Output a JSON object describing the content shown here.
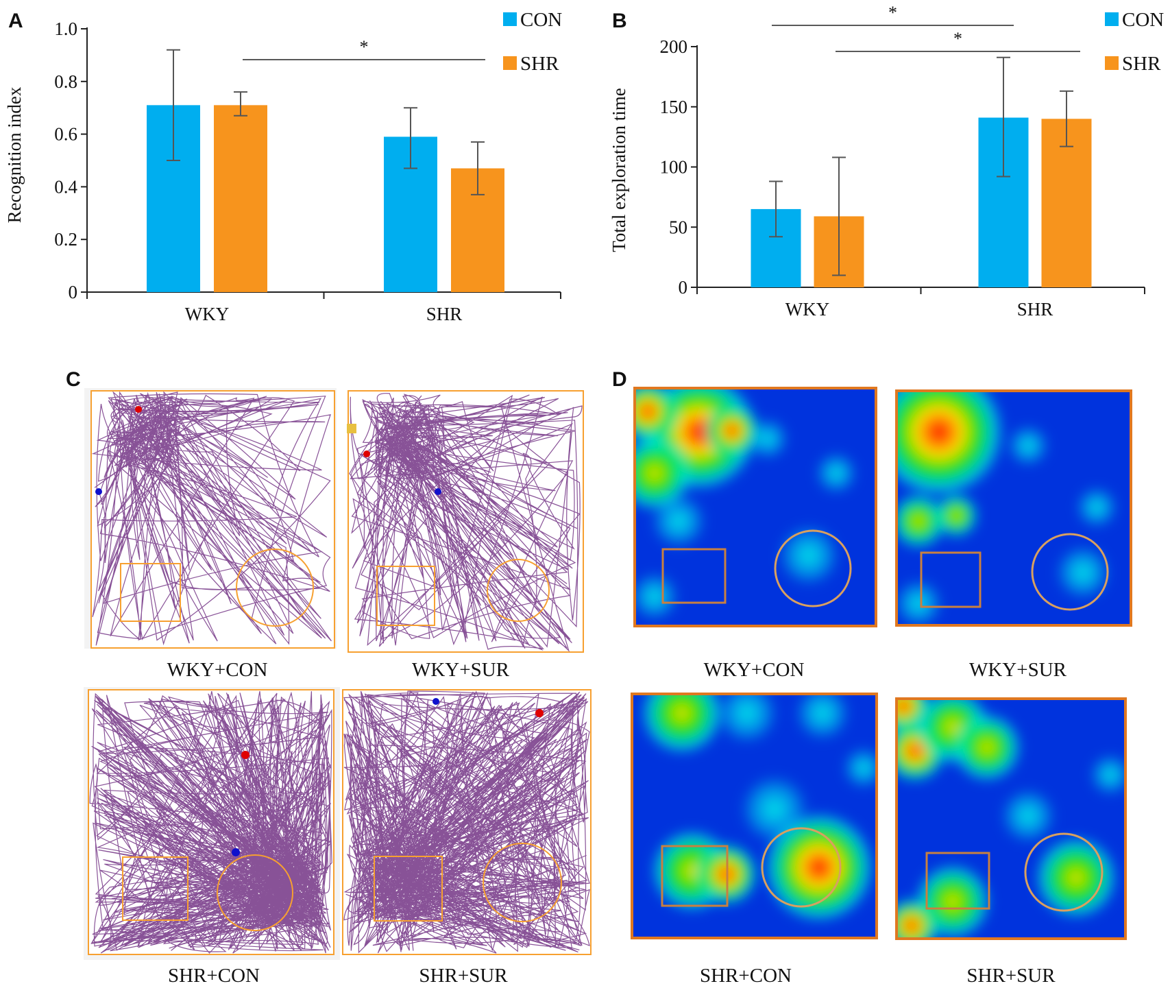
{
  "chart_data": [
    {
      "panel": "A",
      "type": "bar",
      "categories": [
        "WKY",
        "SHR"
      ],
      "ylabel": "Recognition index",
      "ylim": [
        0,
        1.0
      ],
      "yticks": [
        "0",
        "0.2",
        "0.4",
        "0.6",
        "0.8",
        "1.0"
      ],
      "series": [
        {
          "name": "CON",
          "color": "#00AEEF",
          "values": [
            0.71,
            0.59
          ],
          "err_low": [
            0.5,
            0.47
          ],
          "err_high": [
            0.92,
            0.7
          ]
        },
        {
          "name": "SHR",
          "color": "#F7941D",
          "values": [
            0.71,
            0.47
          ],
          "err_low": [
            0.67,
            0.37
          ],
          "err_high": [
            0.76,
            0.57
          ]
        }
      ],
      "significance": [
        {
          "label": "*"
        }
      ],
      "legend": "top-right"
    },
    {
      "panel": "B",
      "type": "bar",
      "categories": [
        "WKY",
        "SHR"
      ],
      "ylabel": "Total exploration time",
      "ylim": [
        0,
        200
      ],
      "yticks": [
        "0",
        "50",
        "100",
        "150",
        "200"
      ],
      "series": [
        {
          "name": "CON",
          "color": "#00AEEF",
          "values": [
            65,
            141
          ],
          "err_low": [
            42,
            92
          ],
          "err_high": [
            88,
            191
          ]
        },
        {
          "name": "SHR",
          "color": "#F7941D",
          "values": [
            59,
            140
          ],
          "err_low": [
            10,
            117
          ],
          "err_high": [
            108,
            163
          ]
        }
      ],
      "significance": [
        {
          "label": "*"
        },
        {
          "label": "*"
        }
      ],
      "legend": "top-right"
    }
  ],
  "panels": {
    "A": {
      "letter": "A"
    },
    "B": {
      "letter": "B"
    },
    "C": {
      "letter": "C",
      "captions": [
        "WKY+CON",
        "WKY+SUR",
        "SHR+CON",
        "SHR+SUR"
      ]
    },
    "D": {
      "letter": "D",
      "captions": [
        "WKY+CON",
        "WKY+SUR",
        "SHR+CON",
        "SHR+SUR"
      ]
    }
  },
  "colors": {
    "track": "#7B3F8C",
    "arena_border": "#F7A030",
    "heat_base": "#0033DD"
  }
}
